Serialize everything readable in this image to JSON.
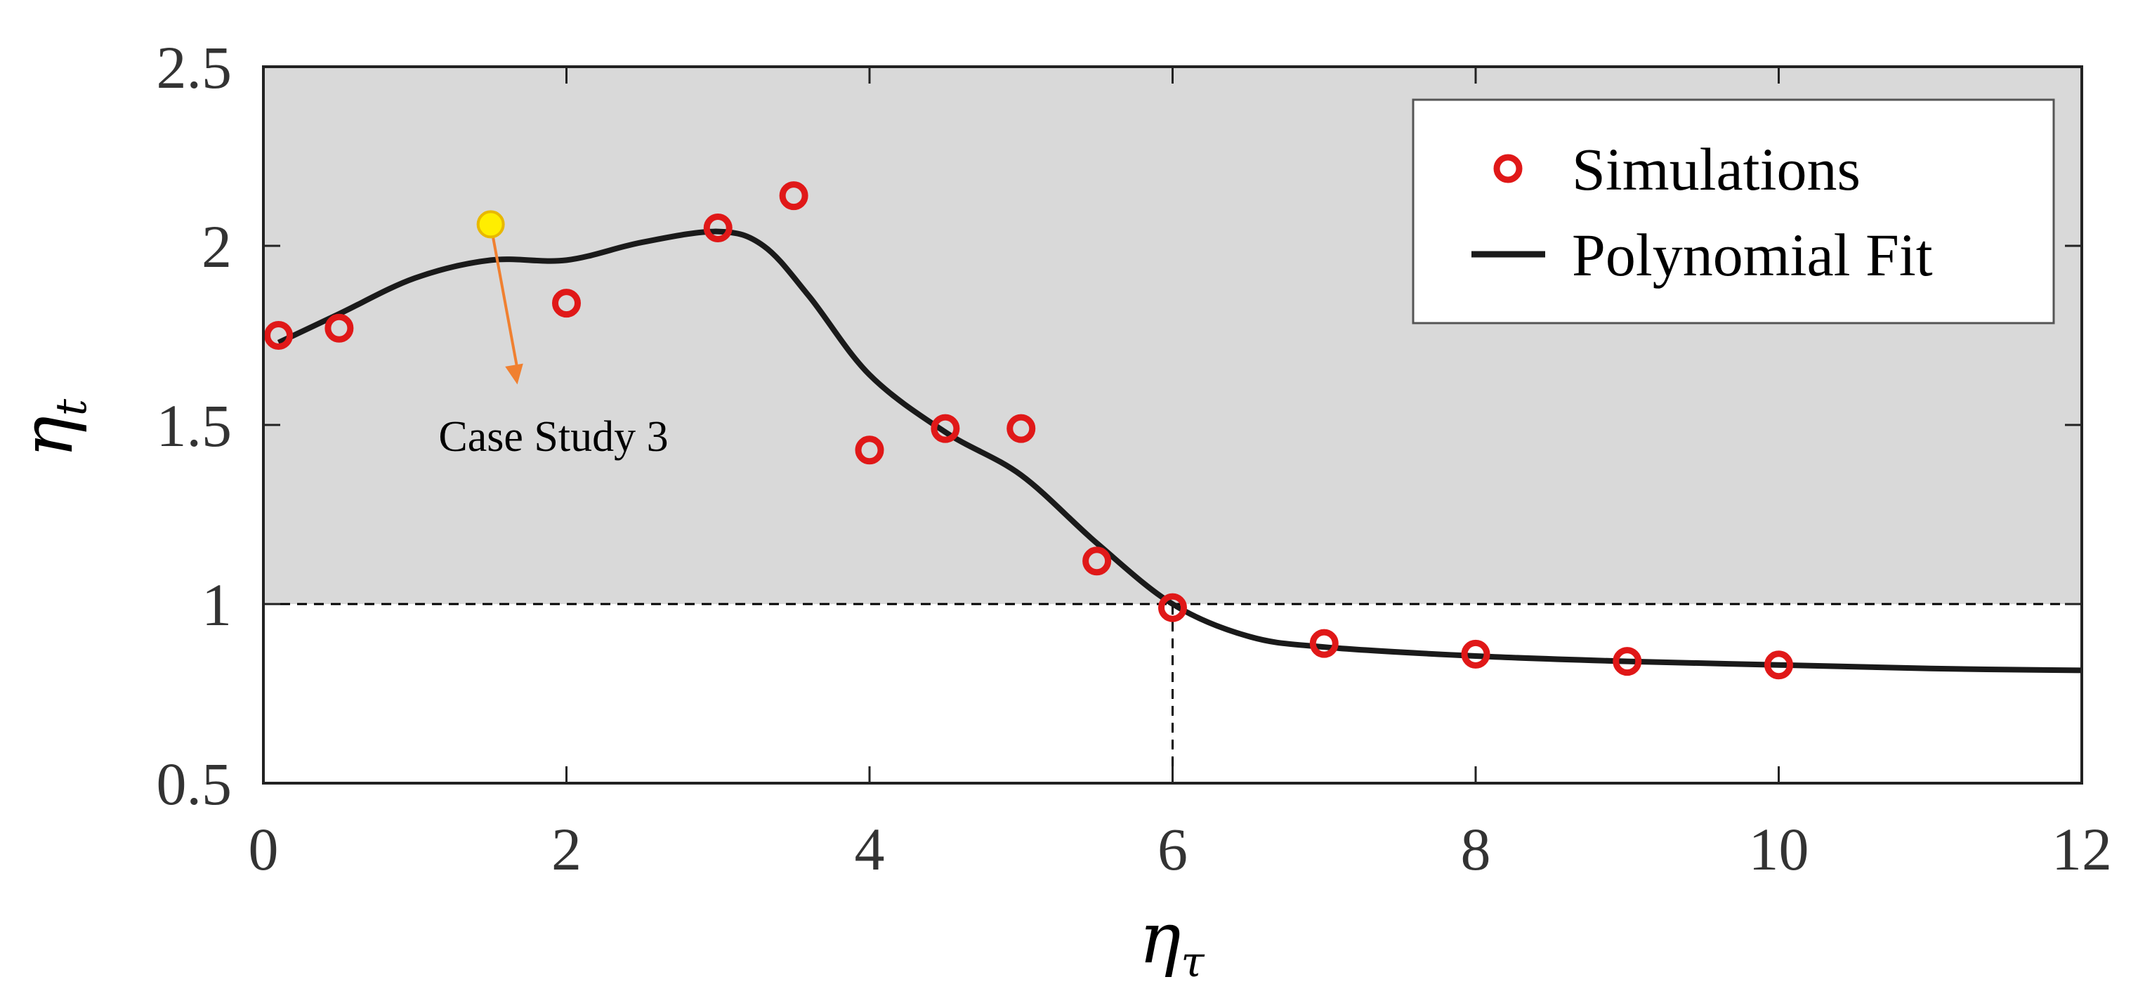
{
  "chart_data": {
    "type": "scatter",
    "xlabel": "ητ",
    "ylabel": "ηt",
    "xlim": [
      0,
      12
    ],
    "ylim": [
      0.5,
      2.5
    ],
    "xticks": [
      "0",
      "2",
      "4",
      "6",
      "8",
      "10",
      "12"
    ],
    "yticks": [
      "0.5",
      "1",
      "1.5",
      "2",
      "2.5"
    ],
    "grid": false,
    "legend_position": "top-right",
    "shaded_region": {
      "y_from": 1.0,
      "y_to": 2.5,
      "color": "#d9d9d9"
    },
    "reference_lines": [
      {
        "orientation": "horizontal",
        "y": 1.0,
        "style": "dashed"
      },
      {
        "orientation": "vertical",
        "x": 6.0,
        "y_from": 0.5,
        "y_to": 1.0,
        "style": "dashed"
      }
    ],
    "series": [
      {
        "name": "Simulations",
        "kind": "markers",
        "color": "#e01818",
        "x": [
          0.1,
          0.5,
          2.0,
          3.0,
          3.5,
          4.0,
          4.5,
          5.0,
          5.5,
          6.0,
          7.0,
          8.0,
          9.0,
          10.0
        ],
        "y": [
          1.75,
          1.77,
          1.84,
          2.05,
          2.14,
          1.43,
          1.49,
          1.49,
          1.12,
          0.99,
          0.89,
          0.86,
          0.84,
          0.83
        ]
      },
      {
        "name": "Polynomial Fit",
        "kind": "line",
        "color": "#1a1a1a",
        "x": [
          0.1,
          0.5,
          1.0,
          1.5,
          2.0,
          2.5,
          3.0,
          3.3,
          3.6,
          4.0,
          4.5,
          5.0,
          5.5,
          6.0,
          6.5,
          7.0,
          8.0,
          9.0,
          10.0,
          11.0,
          12.0
        ],
        "y": [
          1.73,
          1.81,
          1.91,
          1.96,
          1.96,
          2.01,
          2.04,
          2.0,
          1.86,
          1.64,
          1.48,
          1.36,
          1.17,
          1.0,
          0.91,
          0.88,
          0.855,
          0.84,
          0.83,
          0.82,
          0.815
        ]
      }
    ],
    "annotations": [
      {
        "text": "Case Study 3",
        "point": {
          "x": 1.5,
          "y": 2.06
        },
        "marker_color": "#ffee00",
        "arrow_color": "#f08030"
      }
    ]
  }
}
